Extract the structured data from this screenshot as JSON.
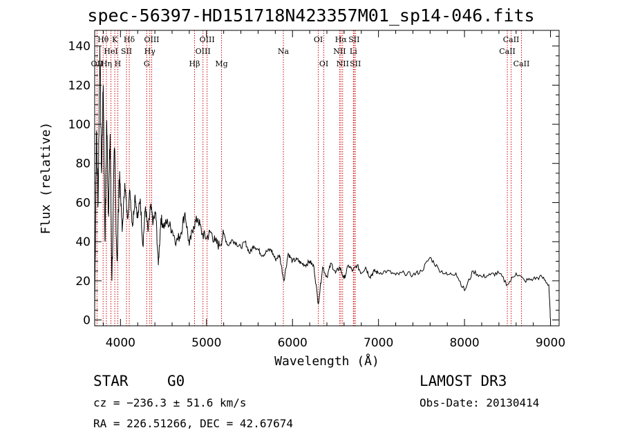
{
  "chart_data": {
    "type": "line",
    "title": "spec-56397-HD151718N423357M01_sp14-046.fits",
    "xlabel": "Wavelength (Å)",
    "ylabel": "Flux (relative)",
    "xlim": [
      3700,
      9100
    ],
    "ylim": [
      -3,
      148
    ],
    "xticks": [
      4000,
      5000,
      6000,
      7000,
      8000,
      9000
    ],
    "yticks": [
      0,
      20,
      40,
      60,
      80,
      100,
      120,
      140
    ],
    "series": [
      {
        "name": "flux",
        "x": [
          3700,
          3720,
          3740,
          3760,
          3780,
          3800,
          3820,
          3840,
          3860,
          3880,
          3900,
          3930,
          3960,
          3990,
          4020,
          4050,
          4080,
          4110,
          4140,
          4170,
          4200,
          4230,
          4260,
          4290,
          4320,
          4350,
          4380,
          4410,
          4440,
          4470,
          4500,
          4550,
          4600,
          4650,
          4700,
          4750,
          4800,
          4850,
          4900,
          4950,
          5000,
          5050,
          5100,
          5150,
          5200,
          5250,
          5300,
          5350,
          5400,
          5450,
          5500,
          5550,
          5600,
          5650,
          5700,
          5750,
          5800,
          5850,
          5900,
          5950,
          6000,
          6050,
          6100,
          6150,
          6200,
          6250,
          6300,
          6350,
          6400,
          6450,
          6500,
          6550,
          6600,
          6650,
          6700,
          6750,
          6800,
          6850,
          6900,
          6950,
          7000,
          7100,
          7200,
          7300,
          7400,
          7500,
          7600,
          7700,
          7800,
          7900,
          8000,
          8100,
          8200,
          8300,
          8400,
          8500,
          8600,
          8700,
          8800,
          8900,
          8980,
          9000
        ],
        "y": [
          6,
          95,
          60,
          140,
          75,
          120,
          40,
          102,
          55,
          95,
          20,
          88,
          30,
          76,
          45,
          70,
          52,
          66,
          48,
          64,
          52,
          62,
          38,
          58,
          45,
          58,
          50,
          55,
          28,
          52,
          48,
          50,
          46,
          40,
          44,
          55,
          38,
          48,
          52,
          44,
          42,
          45,
          40,
          38,
          44,
          38,
          41,
          39,
          37,
          40,
          34,
          38,
          36,
          33,
          35,
          36,
          31,
          33,
          20,
          34,
          30,
          31,
          29,
          28,
          30,
          27,
          8,
          27,
          22,
          29,
          24,
          27,
          21,
          28,
          25,
          28,
          24,
          27,
          22,
          25,
          24,
          25,
          23,
          24,
          23,
          25,
          32,
          26,
          23,
          24,
          15,
          25,
          22,
          23,
          24,
          18,
          24,
          20,
          21,
          22,
          18,
          0
        ]
      }
    ],
    "absorption_lines": [
      {
        "label": "OII",
        "wavelength": 3727,
        "row": 3
      },
      {
        "label": "Hθ",
        "wavelength": 3798,
        "row": 1
      },
      {
        "label": "Hη",
        "wavelength": 3836,
        "row": 3
      },
      {
        "label": "HeI",
        "wavelength": 3889,
        "row": 2
      },
      {
        "label": "K",
        "wavelength": 3934,
        "row": 1
      },
      {
        "label": "H",
        "wavelength": 3969,
        "row": 3
      },
      {
        "label": "SII",
        "wavelength": 4070,
        "row": 2
      },
      {
        "label": "Hδ",
        "wavelength": 4102,
        "row": 1
      },
      {
        "label": "G",
        "wavelength": 4305,
        "row": 3
      },
      {
        "label": "Hγ",
        "wavelength": 4341,
        "row": 2
      },
      {
        "label": "OIII",
        "wavelength": 4363,
        "row": 1
      },
      {
        "label": "Hβ",
        "wavelength": 4861,
        "row": 3
      },
      {
        "label": "OIII",
        "wavelength": 4959,
        "row": 2
      },
      {
        "label": "OIII",
        "wavelength": 5007,
        "row": 1
      },
      {
        "label": "Mg",
        "wavelength": 5175,
        "row": 3
      },
      {
        "label": "Na",
        "wavelength": 5894,
        "row": 2
      },
      {
        "label": "OI",
        "wavelength": 6300,
        "row": 1
      },
      {
        "label": "OI",
        "wavelength": 6364,
        "row": 3
      },
      {
        "label": "NII",
        "wavelength": 6548,
        "row": 2
      },
      {
        "label": "Hα",
        "wavelength": 6563,
        "row": 1
      },
      {
        "label": "NII",
        "wavelength": 6583,
        "row": 3
      },
      {
        "label": "Li",
        "wavelength": 6708,
        "row": 2
      },
      {
        "label": "SII",
        "wavelength": 6716,
        "row": 1
      },
      {
        "label": "SII",
        "wavelength": 6731,
        "row": 3
      },
      {
        "label": "CaII",
        "wavelength": 8498,
        "row": 2
      },
      {
        "label": "CaII",
        "wavelength": 8542,
        "row": 1
      },
      {
        "label": "CaII",
        "wavelength": 8662,
        "row": 3
      }
    ]
  },
  "info": {
    "object_class": "STAR",
    "subclass": "G0",
    "survey": "LAMOST DR3",
    "redshift": "cz = −236.3 ± 51.6 km/s",
    "obs_date": "Obs-Date: 20130414",
    "coords": "RA = 226.51266, DEC =  42.67674"
  },
  "colors": {
    "line": "#000000",
    "marker": "#cc0000"
  }
}
